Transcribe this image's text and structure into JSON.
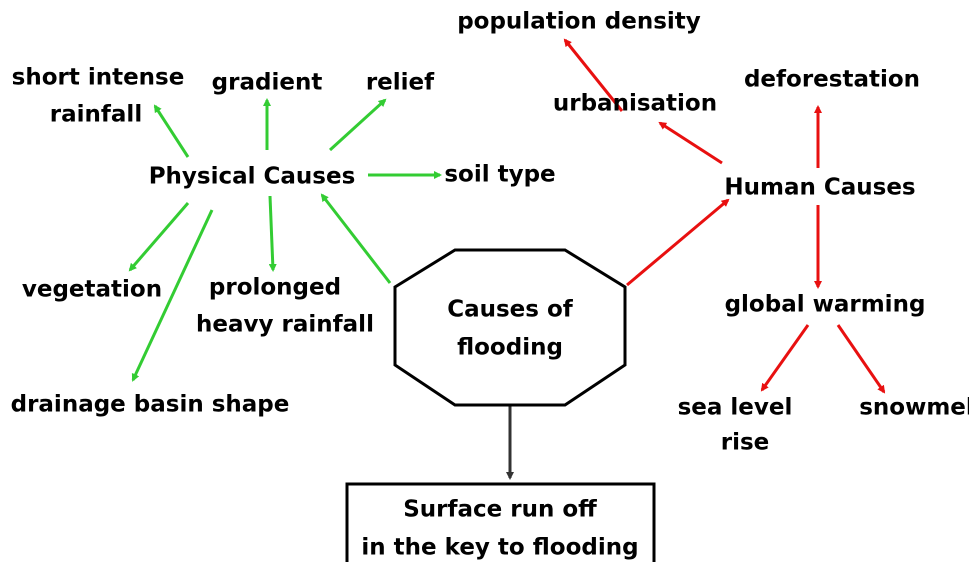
{
  "title": [
    "Causes of",
    "flooding"
  ],
  "physical": {
    "label": "Physical Causes",
    "items": [
      [
        "short intense",
        "rainfall"
      ],
      [
        "gradient"
      ],
      [
        "relief"
      ],
      [
        "soil type"
      ],
      [
        "vegetation"
      ],
      [
        "prolonged",
        "heavy rainfall"
      ],
      [
        "drainage basin shape"
      ]
    ]
  },
  "human": {
    "label": "Human Causes",
    "items": [
      [
        "urbanisation"
      ],
      [
        "population density"
      ],
      [
        "deforestation"
      ],
      [
        "global warming"
      ],
      [
        "sea level",
        "rise"
      ],
      [
        "snowmelt"
      ]
    ]
  },
  "result": [
    "Surface run off",
    "in the key to flooding"
  ]
}
